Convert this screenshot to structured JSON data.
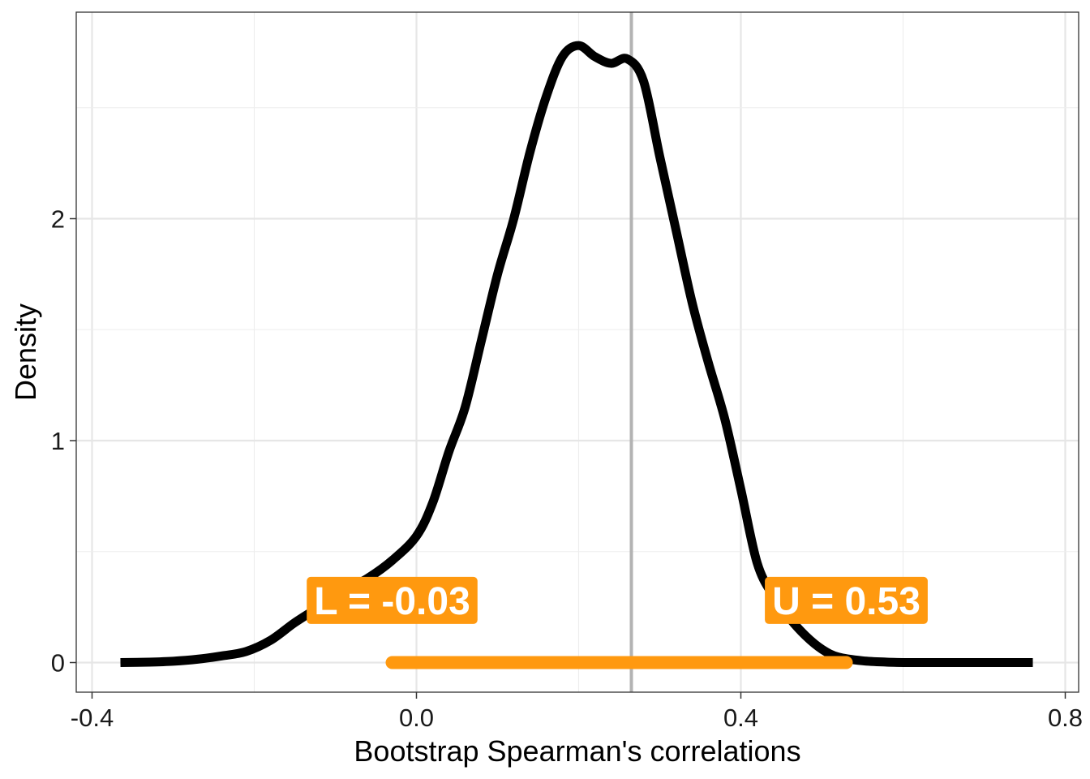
{
  "chart_data": {
    "type": "line",
    "title": "",
    "xlabel": "Bootstrap Spearman's correlations",
    "ylabel": "Density",
    "xlim": [
      -0.4,
      0.8
    ],
    "ylim": [
      0,
      2.8
    ],
    "x_ticks": [
      -0.4,
      0.0,
      0.4,
      0.8
    ],
    "x_tick_labels": [
      "-0.4",
      "0.0",
      "0.4",
      "0.8"
    ],
    "y_ticks": [
      0,
      1,
      2
    ],
    "y_tick_labels": [
      "0",
      "1",
      "2"
    ],
    "grid": true,
    "series": [
      {
        "color": "#000000",
        "x": [
          -0.365,
          -0.33,
          -0.3,
          -0.27,
          -0.24,
          -0.21,
          -0.18,
          -0.15,
          -0.12,
          -0.09,
          -0.06,
          -0.03,
          0.0,
          0.02,
          0.04,
          0.06,
          0.08,
          0.1,
          0.12,
          0.14,
          0.16,
          0.18,
          0.2,
          0.22,
          0.24,
          0.26,
          0.28,
          0.3,
          0.32,
          0.34,
          0.36,
          0.38,
          0.4,
          0.42,
          0.44,
          0.46,
          0.48,
          0.5,
          0.52,
          0.55,
          0.58,
          0.61,
          0.64,
          0.67,
          0.7,
          0.73,
          0.76
        ],
        "y": [
          0.0,
          0.002,
          0.006,
          0.015,
          0.03,
          0.05,
          0.1,
          0.18,
          0.25,
          0.32,
          0.38,
          0.46,
          0.57,
          0.72,
          0.95,
          1.15,
          1.45,
          1.75,
          2.0,
          2.3,
          2.55,
          2.73,
          2.78,
          2.73,
          2.7,
          2.72,
          2.62,
          2.28,
          1.95,
          1.62,
          1.35,
          1.1,
          0.78,
          0.45,
          0.3,
          0.2,
          0.12,
          0.06,
          0.025,
          0.008,
          0.002,
          0.0,
          0.0,
          0.0,
          0.0,
          0.0,
          0.0
        ]
      }
    ],
    "reference_line": {
      "x": 0.265,
      "color": "#b3b3b3"
    },
    "interval": {
      "lower": -0.03,
      "upper": 0.53,
      "y": 0,
      "color": "#FF990F"
    },
    "annotations": [
      {
        "text": "L =  -0.03",
        "x": -0.03,
        "y": 0.28,
        "fill": "#FF990F",
        "color": "#ffffff"
      },
      {
        "text": "U =  0.53",
        "x": 0.53,
        "y": 0.28,
        "fill": "#FF990F",
        "color": "#ffffff"
      }
    ]
  }
}
